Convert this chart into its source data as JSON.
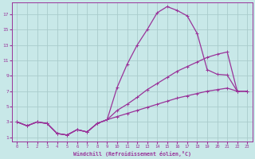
{
  "xlabel": "Windchill (Refroidissement éolien,°C)",
  "bg_color": "#c8e8e8",
  "grid_color": "#aacccc",
  "line_color": "#993399",
  "xlim": [
    -0.5,
    23.5
  ],
  "ylim": [
    0.5,
    18.5
  ],
  "xticks": [
    0,
    1,
    2,
    3,
    4,
    5,
    6,
    7,
    8,
    9,
    10,
    11,
    12,
    13,
    14,
    15,
    16,
    17,
    18,
    19,
    20,
    21,
    22,
    23
  ],
  "yticks": [
    1,
    3,
    5,
    7,
    9,
    11,
    13,
    15,
    17
  ],
  "line1_x": [
    0,
    1,
    2,
    3,
    4,
    5,
    6,
    7,
    8,
    9,
    10,
    11,
    12,
    13,
    14,
    15,
    16,
    17,
    18,
    19,
    20,
    21,
    22,
    23
  ],
  "line1_y": [
    3.0,
    2.5,
    3.0,
    2.8,
    1.5,
    1.3,
    2.0,
    1.7,
    2.8,
    3.3,
    7.5,
    10.5,
    13.0,
    15.0,
    17.2,
    18.0,
    17.5,
    16.8,
    14.5,
    9.8,
    9.2,
    9.1,
    7.0,
    7.0
  ],
  "line2_x": [
    0,
    1,
    2,
    3,
    4,
    5,
    6,
    7,
    8,
    9,
    10,
    11,
    12,
    13,
    14,
    15,
    16,
    17,
    18,
    19,
    20,
    21,
    22,
    23
  ],
  "line2_y": [
    3.0,
    2.5,
    3.0,
    2.8,
    1.5,
    1.3,
    2.0,
    1.7,
    2.8,
    3.3,
    4.5,
    5.3,
    6.2,
    7.2,
    8.0,
    8.8,
    9.6,
    10.2,
    10.8,
    11.4,
    11.8,
    12.1,
    7.0,
    7.0
  ],
  "line3_x": [
    0,
    1,
    2,
    3,
    4,
    5,
    6,
    7,
    8,
    9,
    10,
    11,
    12,
    13,
    14,
    15,
    16,
    17,
    18,
    19,
    20,
    21,
    22,
    23
  ],
  "line3_y": [
    3.0,
    2.5,
    3.0,
    2.8,
    1.5,
    1.3,
    2.0,
    1.7,
    2.8,
    3.3,
    3.7,
    4.1,
    4.5,
    4.9,
    5.3,
    5.7,
    6.1,
    6.4,
    6.7,
    7.0,
    7.2,
    7.4,
    7.0,
    7.0
  ]
}
